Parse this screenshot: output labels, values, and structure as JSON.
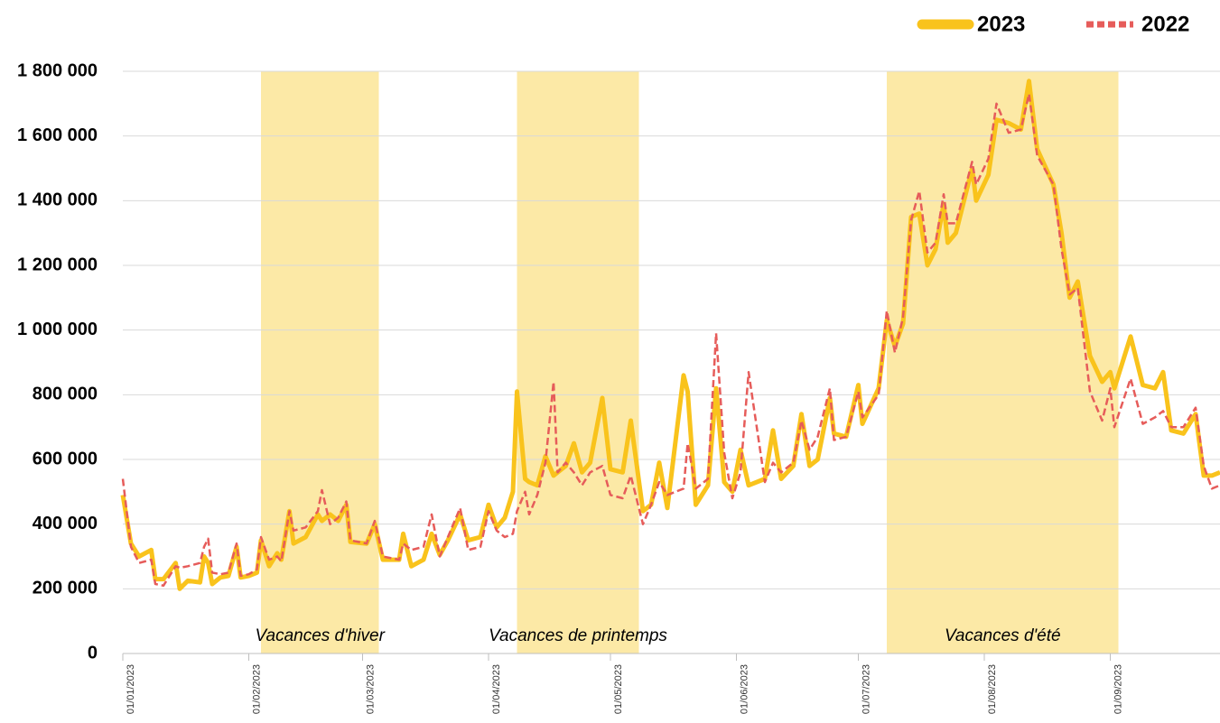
{
  "chart_data": {
    "type": "line",
    "x": [
      "01/01/2023",
      "03/01/2023",
      "05/01/2023",
      "08/01/2023",
      "09/01/2023",
      "11/01/2023",
      "14/01/2023",
      "15/01/2023",
      "17/01/2023",
      "20/01/2023",
      "21/01/2023",
      "22/01/2023",
      "23/01/2023",
      "25/01/2023",
      "27/01/2023",
      "29/01/2023",
      "30/01/2023",
      "01/02/2023",
      "03/02/2023",
      "04/02/2023",
      "06/02/2023",
      "08/02/2023",
      "09/02/2023",
      "11/02/2023",
      "12/02/2023",
      "15/02/2023",
      "18/02/2023",
      "19/02/2023",
      "21/02/2023",
      "23/02/2023",
      "25/02/2023",
      "26/02/2023",
      "02/03/2023",
      "04/03/2023",
      "06/03/2023",
      "10/03/2023",
      "11/03/2023",
      "13/03/2023",
      "16/03/2023",
      "18/03/2023",
      "20/03/2023",
      "22/03/2023",
      "25/03/2023",
      "27/03/2023",
      "30/03/2023",
      "01/04/2023",
      "03/04/2023",
      "05/04/2023",
      "07/04/2023",
      "08/04/2023",
      "10/04/2023",
      "11/04/2023",
      "13/04/2023",
      "15/04/2023",
      "17/04/2023",
      "18/04/2023",
      "20/04/2023",
      "22/04/2023",
      "24/04/2023",
      "26/04/2023",
      "29/04/2023",
      "01/05/2023",
      "04/05/2023",
      "06/05/2023",
      "09/05/2023",
      "11/05/2023",
      "13/05/2023",
      "15/05/2023",
      "19/05/2023",
      "20/05/2023",
      "22/05/2023",
      "25/05/2023",
      "27/05/2023",
      "29/05/2023",
      "31/05/2023",
      "02/06/2023",
      "04/06/2023",
      "08/06/2023",
      "10/06/2023",
      "12/06/2023",
      "15/06/2023",
      "17/06/2023",
      "19/06/2023",
      "21/06/2023",
      "24/06/2023",
      "25/06/2023",
      "28/06/2023",
      "01/07/2023",
      "02/07/2023",
      "06/07/2023",
      "08/07/2023",
      "10/07/2023",
      "12/07/2023",
      "14/07/2023",
      "16/07/2023",
      "18/07/2023",
      "20/07/2023",
      "22/07/2023",
      "23/07/2023",
      "25/07/2023",
      "29/07/2023",
      "30/07/2023",
      "02/08/2023",
      "04/08/2023",
      "07/08/2023",
      "10/08/2023",
      "12/08/2023",
      "14/08/2023",
      "18/08/2023",
      "20/08/2023",
      "22/08/2023",
      "24/08/2023",
      "27/08/2023",
      "30/08/2023",
      "01/09/2023",
      "02/09/2023",
      "06/09/2023",
      "09/09/2023",
      "12/09/2023",
      "14/09/2023",
      "16/09/2023",
      "19/09/2023",
      "22/09/2023",
      "24/09/2023",
      "26/09/2023",
      "28/09/2023"
    ],
    "series": [
      {
        "name": "2023",
        "color": "#f9c31c",
        "line_style": "solid",
        "values": [
          490000,
          340000,
          300000,
          320000,
          230000,
          230000,
          280000,
          200000,
          225000,
          220000,
          300000,
          280000,
          215000,
          235000,
          240000,
          330000,
          235000,
          240000,
          250000,
          350000,
          270000,
          310000,
          290000,
          440000,
          340000,
          360000,
          430000,
          410000,
          430000,
          410000,
          460000,
          345000,
          340000,
          400000,
          290000,
          290000,
          370000,
          270000,
          290000,
          370000,
          305000,
          350000,
          430000,
          350000,
          360000,
          460000,
          390000,
          420000,
          500000,
          810000,
          540000,
          530000,
          520000,
          610000,
          550000,
          560000,
          580000,
          650000,
          560000,
          590000,
          790000,
          570000,
          560000,
          720000,
          440000,
          460000,
          590000,
          450000,
          860000,
          810000,
          460000,
          520000,
          820000,
          530000,
          500000,
          630000,
          520000,
          540000,
          690000,
          540000,
          580000,
          740000,
          580000,
          600000,
          790000,
          680000,
          670000,
          830000,
          710000,
          820000,
          1030000,
          950000,
          1020000,
          1350000,
          1360000,
          1200000,
          1250000,
          1390000,
          1270000,
          1300000,
          1500000,
          1400000,
          1480000,
          1650000,
          1640000,
          1620000,
          1770000,
          1560000,
          1450000,
          1300000,
          1100000,
          1150000,
          920000,
          840000,
          870000,
          820000,
          980000,
          830000,
          820000,
          870000,
          690000,
          680000,
          740000,
          550000,
          550000,
          560000
        ]
      },
      {
        "name": "2022",
        "color": "#e65c5a",
        "line_style": "dashed",
        "values": [
          540000,
          330000,
          280000,
          290000,
          215000,
          210000,
          270000,
          265000,
          270000,
          280000,
          330000,
          355000,
          250000,
          245000,
          250000,
          340000,
          240000,
          245000,
          260000,
          360000,
          290000,
          300000,
          285000,
          440000,
          380000,
          390000,
          440000,
          505000,
          400000,
          420000,
          470000,
          350000,
          340000,
          410000,
          300000,
          290000,
          340000,
          320000,
          330000,
          430000,
          300000,
          360000,
          450000,
          320000,
          330000,
          440000,
          380000,
          360000,
          370000,
          440000,
          500000,
          430000,
          490000,
          590000,
          840000,
          560000,
          590000,
          560000,
          520000,
          560000,
          580000,
          490000,
          480000,
          550000,
          400000,
          460000,
          530000,
          490000,
          510000,
          650000,
          510000,
          540000,
          990000,
          620000,
          480000,
          560000,
          870000,
          530000,
          590000,
          560000,
          590000,
          720000,
          630000,
          670000,
          820000,
          660000,
          670000,
          810000,
          730000,
          800000,
          1060000,
          930000,
          1040000,
          1340000,
          1430000,
          1240000,
          1270000,
          1420000,
          1330000,
          1330000,
          1520000,
          1450000,
          1530000,
          1700000,
          1610000,
          1620000,
          1730000,
          1540000,
          1450000,
          1250000,
          1110000,
          1130000,
          810000,
          720000,
          820000,
          700000,
          850000,
          710000,
          730000,
          750000,
          700000,
          700000,
          760000,
          580000,
          510000,
          520000
        ]
      }
    ],
    "xlim": [
      "01/01/2023",
      "28/09/2023"
    ],
    "xticks": [
      "01/01/2023",
      "01/02/2023",
      "01/03/2023",
      "01/04/2023",
      "01/05/2023",
      "01/06/2023",
      "01/07/2023",
      "01/08/2023",
      "01/09/2023"
    ],
    "ylim": [
      0,
      1800000
    ],
    "yticks": [
      0,
      {
        "value": 200000,
        "label": "200 000"
      },
      {
        "value": 400000,
        "label": "400 000"
      },
      {
        "value": 600000,
        "label": "600 000"
      },
      {
        "value": 800000,
        "label": "800 000"
      },
      {
        "value": 1000000,
        "label": "1 000 000"
      },
      {
        "value": 1200000,
        "label": "1 200 000"
      },
      {
        "value": 1400000,
        "label": "1 400 000"
      },
      {
        "value": 1600000,
        "label": "1 600 000"
      },
      {
        "value": 1800000,
        "label": "1 800 000"
      }
    ],
    "grid": true,
    "legend": "top-right",
    "bands": [
      {
        "label": "Vacances d'hiver",
        "start": "04/02/2023",
        "end": "05/03/2023",
        "color": "#fce9a6"
      },
      {
        "label": "Vacances de printemps",
        "start": "08/04/2023",
        "end": "08/05/2023",
        "color": "#fce9a6"
      },
      {
        "label": "Vacances d'été",
        "start": "08/07/2023",
        "end": "03/09/2023",
        "color": "#fce9a6"
      }
    ]
  }
}
